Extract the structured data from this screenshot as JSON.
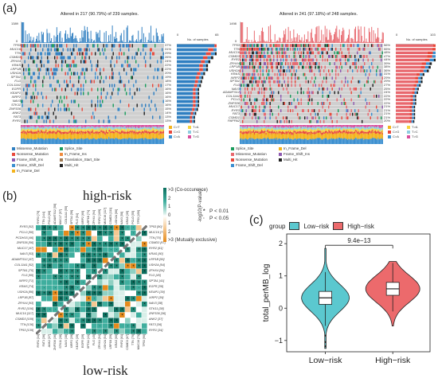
{
  "panel_a": {
    "letter": "(a)",
    "left": {
      "title": "Altered in 217 (90.79%) of 239 samples.",
      "tmb_max": "1389",
      "tmb_min": "0",
      "side_max": "65",
      "side_label": "No. of samples",
      "genes": [
        "TP53",
        "MUC16",
        "TTN",
        "CSMD3",
        "ZFHX4",
        "KRAS",
        "LRP1B",
        "USH2A",
        "SPTA1",
        "FLG",
        "COL11A1",
        "EGFR",
        "KEAP1",
        "XIRP2",
        "NAV3",
        "STK11",
        "ZNF536",
        "ANK2",
        "FAT3",
        "RYR1"
      ],
      "pcts": [
        "37%",
        "31%",
        "29%",
        "26%",
        "24%",
        "22%",
        "22%",
        "20%",
        "19%",
        "18%",
        "17%",
        "16%",
        "16%",
        "16%",
        "16%",
        "16%",
        "15%",
        "14%",
        "13%",
        "13%"
      ],
      "counts": [
        89,
        74,
        69,
        62,
        57,
        53,
        53,
        48,
        45,
        43,
        41,
        38,
        38,
        38,
        38,
        38,
        36,
        33,
        31,
        31
      ],
      "color": "#2f7fc1"
    },
    "right": {
      "title": "Altered in 241 (97.18%) of 248 samples.",
      "tmb_max": "1498",
      "tmb_min": "0",
      "side_max": "103",
      "side_label": "No. of samples",
      "genes": [
        "TP53",
        "TTN",
        "MUC16",
        "CSMD3",
        "RYR2",
        "ZFHX4",
        "LRP1B",
        "USH2A",
        "KRAS",
        "XIRP2",
        "SPTA1",
        "FLG",
        "NAV3",
        "ADAMTS12",
        "COL11A1",
        "PCLO",
        "ZNF536",
        "MUC17",
        "RYR3",
        "FAT3",
        "CSMD1",
        "PAPPA2"
      ],
      "pcts": [
        "56%",
        "55%",
        "48%",
        "47%",
        "44%",
        "39%",
        "38%",
        "36%",
        "31%",
        "29%",
        "29%",
        "27%",
        "25%",
        "24%",
        "22%",
        "22%",
        "22%",
        "21%",
        "21%",
        "21%",
        "21%",
        "20%"
      ],
      "counts": [
        139,
        136,
        119,
        117,
        109,
        97,
        94,
        89,
        77,
        72,
        72,
        67,
        62,
        60,
        55,
        55,
        55,
        52,
        52,
        52,
        52,
        50
      ],
      "color": "#e8676d"
    },
    "snv_legend": [
      "C>T",
      "C>G",
      "C>A",
      "T>A",
      "T>C",
      "T>G"
    ],
    "snv_colors": [
      "#f4b31b",
      "#e8483b",
      "#3b8fd0",
      "#f7d43d",
      "#8fcde0",
      "#d94f9d"
    ],
    "left_mut_legend": [
      "Missense_Mutation",
      "Nonsense_Mutation",
      "Frame_Shift_Ins",
      "Frame_Shift_Del",
      "In_Frame_Del",
      "Splice_Site",
      "In_Frame_Ins",
      "Translation_Start_Site",
      "Multi_Hit"
    ],
    "left_mut_colors": [
      "#2f7fc1",
      "#e8483b",
      "#8e59b0",
      "#3b8fd0",
      "#f4b31b",
      "#1a9c5c",
      "#ef8a3d",
      "#a07a52",
      "#222222"
    ],
    "right_mut_legend": [
      "Splice_Site",
      "Missense_Mutation",
      "Nonsense_Mutation",
      "Frame_Shift_Del",
      "In_Frame_Del",
      "Frame_Shift_Ins",
      "Multi_Hit"
    ],
    "right_mut_colors": [
      "#1a9c5c",
      "#e8676d",
      "#e8483b",
      "#3b8fd0",
      "#f4b31b",
      "#8e59b0",
      "#222222"
    ]
  },
  "panel_b": {
    "letter": "(b)",
    "top_label": "high-risk",
    "bottom_label": "low-risk",
    "scale_title": "-log10(P-value)",
    "scale_ticks": [
      ">3 (Co-occurence)",
      "2",
      "1",
      "0",
      "1",
      "2",
      ">3 (Mutually exclusive)"
    ],
    "sig_legend": [
      {
        "mark": "*",
        "text": "P < 0.01"
      },
      {
        "mark": "·",
        "text": "P < 0.05"
      }
    ],
    "top_genes": [
      "RYR3 [70]",
      "TTN [144]",
      "PCLO [66]",
      "ADAMTS12 [58]",
      "MUC17 [57]",
      "COL11A1 [55]",
      "SPTA1 [58]",
      "FLG [54]",
      "XIRP2 [60]",
      "LRP1B [71]",
      "ZFHX4 [94]",
      "RYR2 [109]",
      "MUC16 [117]",
      "CSMD3 [111]",
      "USH2A [66]",
      "NAV3 [58]",
      "KRAS [35]",
      "PCLO [55]",
      "TP53 [150]"
    ],
    "left_genes": [
      "RYR3 [52]",
      "PCLO [50]",
      "PCDH15 [46]",
      "ZNF536 [56]",
      "MUC17 [47]",
      "NAV3 [53]",
      "ADAMTS12 [47]",
      "COL11A1 [52]",
      "SPTA1 [70]",
      "FLG [65]",
      "XIRP2 [71]",
      "KRAS [74]",
      "USH2A [86]",
      "LRP1B [87]",
      "ZFHX4 [93]",
      "RYR2 [106]",
      "MUC16 [117]",
      "CSMD3 [109]",
      "TTN [136]",
      "TP53 [139]"
    ],
    "right_genes": [
      "TP53 [90]",
      "MUC16 [73]",
      "TTN [70]",
      "CSMD3 [67]",
      "RYR2 [61]",
      "KRAS [60]",
      "LRP1B [59]",
      "USH2A [54]",
      "ZFHX4 [54]",
      "FLG [45]",
      "SPTA1 [41]",
      "EGFR [39]",
      "KEAP1 [39]",
      "XIRP2 [39]",
      "NAV3 [38]",
      "STK11 [38]",
      "ZNF536 [36]",
      "ANK2 [37]",
      "FAT3 [36]",
      "RYR1 [34]"
    ],
    "bottom_genes": [
      "RYR1 [34]",
      "FAT3 [36]",
      "ANK2 [37]",
      "ZNF536 [36]",
      "STK11 [38]",
      "NAV3 [38]",
      "XIRP2 [39]",
      "KEAP1 [39]",
      "EGFR [39]",
      "SPTA1 [41]",
      "FLG [45]",
      "ZFHX4 [54]",
      "USH2A [54]",
      "LRP1B [59]",
      "KRAS [60]",
      "RYR2 [61]",
      "CSMD3 [67]",
      "TTN [70]",
      "MUC16 [73]",
      "TP53 [90]"
    ]
  },
  "panel_c": {
    "letter": "(c)",
    "legend_title": "group",
    "legend_items": [
      "Low−risk",
      "High−risk"
    ],
    "legend_colors": [
      "#5bc8cf",
      "#ec6a6c"
    ],
    "pvalue": "9.4e−13",
    "chart_data": {
      "type": "violin",
      "categories": [
        "Low−risk",
        "High−risk"
      ],
      "ylabel": "total_perMB_log",
      "xlabel": "",
      "yticks": [
        "−1",
        "0",
        "1",
        "2"
      ],
      "ylim": [
        -1.35,
        2.3
      ],
      "series": [
        {
          "name": "Low−risk",
          "median": 0.32,
          "q1": 0.12,
          "q3": 0.52,
          "whisker_low": -0.55,
          "whisker_high": 1.12,
          "min": -1.25,
          "max": 1.85
        },
        {
          "name": "High−risk",
          "median": 0.6,
          "q1": 0.4,
          "q3": 0.8,
          "whisker_low": -0.1,
          "whisker_high": 1.4,
          "min": -0.55,
          "max": 1.45
        }
      ]
    }
  }
}
